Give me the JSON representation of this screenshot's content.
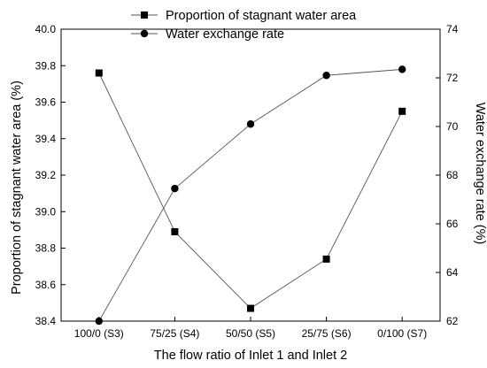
{
  "chart_data": {
    "type": "line",
    "categories": [
      "100/0 (S3)",
      "75/25 (S4)",
      "50/50 (S5)",
      "25/75 (S6)",
      "0/100 (S7)"
    ],
    "xlabel": "The flow ratio of Inlet 1 and Inlet 2",
    "ylabel_left": "Proportion of stagnant water area (%)",
    "ylabel_right": "Water exchange rate (%)",
    "ylim_left": [
      38.4,
      40.0
    ],
    "ylim_right": [
      62,
      74
    ],
    "yticks_left": [
      "38.4",
      "38.6",
      "38.8",
      "39.0",
      "39.2",
      "39.4",
      "39.6",
      "39.8",
      "40.0"
    ],
    "yticks_right": [
      "62",
      "64",
      "66",
      "68",
      "70",
      "72",
      "74"
    ],
    "series": [
      {
        "name": "Proportion of stagnant water area",
        "axis": "left",
        "marker": "square",
        "values": [
          39.76,
          38.89,
          38.47,
          38.74,
          39.55
        ]
      },
      {
        "name": "Water exchange rate",
        "axis": "right",
        "marker": "circle",
        "values": [
          62.0,
          67.45,
          70.1,
          72.1,
          72.35
        ]
      }
    ],
    "legend_position": "top",
    "grid": false
  }
}
